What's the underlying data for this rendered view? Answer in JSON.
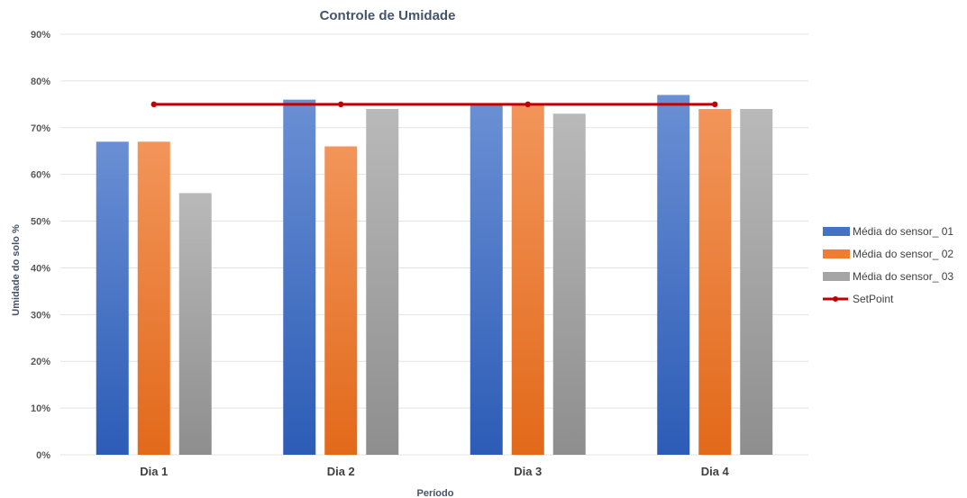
{
  "chart_data": {
    "type": "bar",
    "title": "Controle de Umidade",
    "xlabel": "Período",
    "ylabel": "Umidade do solo %",
    "categories": [
      "Dia 1",
      "Dia 2",
      "Dia 3",
      "Dia 4"
    ],
    "ylim": [
      0,
      90
    ],
    "yticks": [
      0,
      10,
      20,
      30,
      40,
      50,
      60,
      70,
      80,
      90
    ],
    "ytick_labels": [
      "0%",
      "10%",
      "20%",
      "30%",
      "40%",
      "50%",
      "60%",
      "70%",
      "80%",
      "90%"
    ],
    "grid": true,
    "legend_position": "right",
    "series": [
      {
        "name": "Média do sensor_ 01",
        "type": "bar",
        "color": "#4472c4",
        "values": [
          67,
          76,
          75,
          77
        ]
      },
      {
        "name": "Média do sensor_ 02",
        "type": "bar",
        "color": "#ed7d31",
        "values": [
          67,
          66,
          75,
          74
        ]
      },
      {
        "name": "Média do sensor_ 03",
        "type": "bar",
        "color": "#a5a5a5",
        "values": [
          56,
          74,
          73,
          74
        ]
      },
      {
        "name": "SetPoint",
        "type": "line",
        "color": "#c00000",
        "values": [
          75,
          75,
          75,
          75
        ]
      }
    ]
  }
}
